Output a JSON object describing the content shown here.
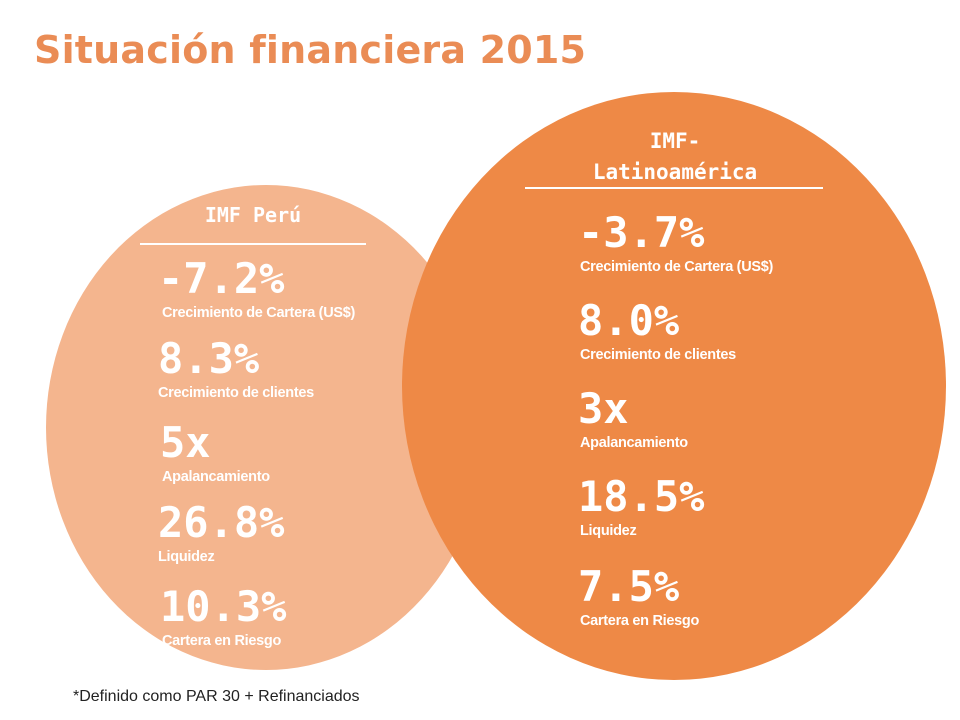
{
  "title": "Situación financiera 2015",
  "peru": {
    "heading": "IMF Perú",
    "stats": [
      {
        "value": "-7.2%",
        "label": "Crecimiento de Cartera (US$)"
      },
      {
        "value": "8.3%",
        "label": "Crecimiento de clientes"
      },
      {
        "value": "5x",
        "label": "Apalancamiento"
      },
      {
        "value": "26.8%",
        "label": "Liquidez"
      },
      {
        "value": "10.3%",
        "label": "Cartera en Riesgo"
      }
    ]
  },
  "latam": {
    "heading_line1": "IMF-",
    "heading_line2": "Latinoamérica",
    "stats": [
      {
        "value": "-3.7%",
        "label": "Crecimiento de Cartera (US$)"
      },
      {
        "value": "8.0%",
        "label": "Crecimiento de clientes"
      },
      {
        "value": "3x",
        "label": "Apalancamiento"
      },
      {
        "value": "18.5%",
        "label": "Liquidez"
      },
      {
        "value": "7.5%",
        "label": "Cartera en Riesgo"
      }
    ]
  },
  "footnote": "*Definido como PAR 30 + Refinanciados",
  "colors": {
    "title": "#ea8c55",
    "peru_circle": "#f4b58e",
    "latam_circle": "#ee8946"
  }
}
